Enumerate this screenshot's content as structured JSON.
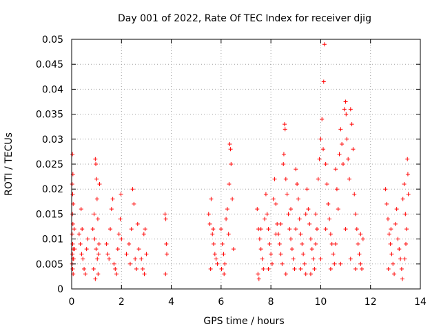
{
  "chart_data": {
    "type": "scatter",
    "title": "Day 001 of 2022, Rate Of TEC Index for receiver djig",
    "xlabel": "GPS time / hours",
    "ylabel": "ROTI / TECUs",
    "xlim": [
      0,
      14
    ],
    "ylim": [
      0,
      0.05
    ],
    "grid": true,
    "marker": "+",
    "color": "#ff0000",
    "x_ticks": [
      0,
      2,
      4,
      6,
      8,
      10,
      12,
      14
    ],
    "x_tick_labels": [
      "0",
      "2",
      "4",
      "6",
      "8",
      "10",
      "12",
      "14"
    ],
    "y_ticks": [
      0,
      0.005,
      0.01,
      0.015,
      0.02,
      0.025,
      0.03,
      0.035,
      0.04,
      0.045,
      0.05
    ],
    "y_tick_labels": [
      "0",
      "0.005",
      "0.01",
      "0.015",
      "0.02",
      "0.025",
      "0.03",
      "0.035",
      "0.04",
      "0.045",
      "0.05"
    ],
    "series": [
      {
        "name": "ROTI",
        "points": [
          [
            0.03,
            0.027
          ],
          [
            0.05,
            0.023
          ],
          [
            0.02,
            0.021
          ],
          [
            0.04,
            0.019
          ],
          [
            0.06,
            0.017
          ],
          [
            0.03,
            0.015
          ],
          [
            0.05,
            0.013
          ],
          [
            0.02,
            0.011
          ],
          [
            0.04,
            0.009
          ],
          [
            0.06,
            0.008
          ],
          [
            0.03,
            0.007
          ],
          [
            0.05,
            0.006
          ],
          [
            0.02,
            0.005
          ],
          [
            0.04,
            0.004
          ],
          [
            0.06,
            0.003
          ],
          [
            0.1,
            0.012
          ],
          [
            0.12,
            0.008
          ],
          [
            0.08,
            0.006
          ],
          [
            0.3,
            0.011
          ],
          [
            0.35,
            0.009
          ],
          [
            0.4,
            0.007
          ],
          [
            0.45,
            0.006
          ],
          [
            0.5,
            0.004
          ],
          [
            0.55,
            0.003
          ],
          [
            0.38,
            0.016
          ],
          [
            0.42,
            0.012
          ],
          [
            0.6,
            0.008
          ],
          [
            0.65,
            0.01
          ],
          [
            0.85,
            0.012
          ],
          [
            0.9,
            0.015
          ],
          [
            0.95,
            0.026
          ],
          [
            0.97,
            0.025
          ],
          [
            1.0,
            0.022
          ],
          [
            1.02,
            0.018
          ],
          [
            1.05,
            0.014
          ],
          [
            0.92,
            0.01
          ],
          [
            0.98,
            0.008
          ],
          [
            1.03,
            0.006
          ],
          [
            0.88,
            0.004
          ],
          [
            1.06,
            0.003
          ],
          [
            0.95,
            0.002
          ],
          [
            1.1,
            0.009
          ],
          [
            1.08,
            0.007
          ],
          [
            1.12,
            0.021
          ],
          [
            1.4,
            0.009
          ],
          [
            1.45,
            0.007
          ],
          [
            1.5,
            0.006
          ],
          [
            1.55,
            0.012
          ],
          [
            1.6,
            0.016
          ],
          [
            1.65,
            0.018
          ],
          [
            1.7,
            0.005
          ],
          [
            1.75,
            0.004
          ],
          [
            1.8,
            0.003
          ],
          [
            1.85,
            0.008
          ],
          [
            1.9,
            0.011
          ],
          [
            1.95,
            0.014
          ],
          [
            1.98,
            0.019
          ],
          [
            2.0,
            0.01
          ],
          [
            2.2,
            0.007
          ],
          [
            2.3,
            0.009
          ],
          [
            2.35,
            0.005
          ],
          [
            2.4,
            0.012
          ],
          [
            2.45,
            0.02
          ],
          [
            2.5,
            0.017
          ],
          [
            2.55,
            0.006
          ],
          [
            2.6,
            0.004
          ],
          [
            2.65,
            0.013
          ],
          [
            2.7,
            0.008
          ],
          [
            2.8,
            0.006
          ],
          [
            2.85,
            0.004
          ],
          [
            2.9,
            0.011
          ],
          [
            2.95,
            0.012
          ],
          [
            3.0,
            0.007
          ],
          [
            2.92,
            0.003
          ],
          [
            3.75,
            0.015
          ],
          [
            3.78,
            0.014
          ],
          [
            3.8,
            0.009
          ],
          [
            3.82,
            0.007
          ],
          [
            3.77,
            0.003
          ],
          [
            5.5,
            0.015
          ],
          [
            5.55,
            0.013
          ],
          [
            5.6,
            0.018
          ],
          [
            5.65,
            0.011
          ],
          [
            5.7,
            0.009
          ],
          [
            5.75,
            0.007
          ],
          [
            5.8,
            0.006
          ],
          [
            5.85,
            0.005
          ],
          [
            5.58,
            0.004
          ],
          [
            5.68,
            0.012
          ],
          [
            6.0,
            0.012
          ],
          [
            6.05,
            0.009
          ],
          [
            6.1,
            0.007
          ],
          [
            6.15,
            0.005
          ],
          [
            6.2,
            0.014
          ],
          [
            6.25,
            0.016
          ],
          [
            6.3,
            0.011
          ],
          [
            6.35,
            0.029
          ],
          [
            6.38,
            0.028
          ],
          [
            6.4,
            0.025
          ],
          [
            6.32,
            0.021
          ],
          [
            6.45,
            0.018
          ],
          [
            6.5,
            0.008
          ],
          [
            6.12,
            0.003
          ],
          [
            6.02,
            0.004
          ],
          [
            7.45,
            0.016
          ],
          [
            7.5,
            0.012
          ],
          [
            7.55,
            0.01
          ],
          [
            7.6,
            0.008
          ],
          [
            7.65,
            0.006
          ],
          [
            7.7,
            0.004
          ],
          [
            7.48,
            0.003
          ],
          [
            7.52,
            0.002
          ],
          [
            7.75,
            0.014
          ],
          [
            7.8,
            0.019
          ],
          [
            7.85,
            0.015
          ],
          [
            7.9,
            0.012
          ],
          [
            7.95,
            0.009
          ],
          [
            8.0,
            0.007
          ],
          [
            8.05,
            0.005
          ],
          [
            8.1,
            0.018
          ],
          [
            8.15,
            0.022
          ],
          [
            8.2,
            0.017
          ],
          [
            8.25,
            0.013
          ],
          [
            8.3,
            0.011
          ],
          [
            8.35,
            0.009
          ],
          [
            8.4,
            0.007
          ],
          [
            8.45,
            0.005
          ],
          [
            8.5,
            0.025
          ],
          [
            8.52,
            0.027
          ],
          [
            8.55,
            0.033
          ],
          [
            8.57,
            0.032
          ],
          [
            8.6,
            0.022
          ],
          [
            8.65,
            0.019
          ],
          [
            8.7,
            0.015
          ],
          [
            8.75,
            0.012
          ],
          [
            8.8,
            0.01
          ],
          [
            8.85,
            0.008
          ],
          [
            8.9,
            0.006
          ],
          [
            8.95,
            0.004
          ],
          [
            9.0,
            0.024
          ],
          [
            9.05,
            0.021
          ],
          [
            9.1,
            0.018
          ],
          [
            9.15,
            0.014
          ],
          [
            9.2,
            0.011
          ],
          [
            9.25,
            0.009
          ],
          [
            9.3,
            0.007
          ],
          [
            9.35,
            0.005
          ],
          [
            9.4,
            0.003
          ],
          [
            9.45,
            0.02
          ],
          [
            9.5,
            0.016
          ],
          [
            9.55,
            0.013
          ],
          [
            9.6,
            0.01
          ],
          [
            9.65,
            0.008
          ],
          [
            9.7,
            0.006
          ],
          [
            9.75,
            0.004
          ],
          [
            9.8,
            0.015
          ],
          [
            9.85,
            0.012
          ],
          [
            9.9,
            0.022
          ],
          [
            9.95,
            0.026
          ],
          [
            10.0,
            0.03
          ],
          [
            10.05,
            0.034
          ],
          [
            10.1,
            0.028
          ],
          [
            10.15,
            0.049
          ],
          [
            10.12,
            0.0415
          ],
          [
            10.2,
            0.025
          ],
          [
            10.25,
            0.021
          ],
          [
            10.3,
            0.017
          ],
          [
            10.35,
            0.014
          ],
          [
            10.4,
            0.011
          ],
          [
            10.45,
            0.009
          ],
          [
            10.5,
            0.007
          ],
          [
            10.55,
            0.005
          ],
          [
            10.6,
            0.024
          ],
          [
            10.65,
            0.02
          ],
          [
            10.7,
            0.016
          ],
          [
            10.75,
            0.027
          ],
          [
            10.8,
            0.032
          ],
          [
            10.85,
            0.029
          ],
          [
            10.9,
            0.025
          ],
          [
            10.95,
            0.036
          ],
          [
            11.0,
            0.0375
          ],
          [
            11.02,
            0.035
          ],
          [
            11.05,
            0.03
          ],
          [
            11.1,
            0.026
          ],
          [
            11.15,
            0.022
          ],
          [
            11.2,
            0.036
          ],
          [
            11.25,
            0.033
          ],
          [
            11.3,
            0.028
          ],
          [
            11.35,
            0.019
          ],
          [
            11.4,
            0.015
          ],
          [
            11.45,
            0.012
          ],
          [
            11.5,
            0.009
          ],
          [
            11.55,
            0.007
          ],
          [
            11.6,
            0.005
          ],
          [
            11.65,
            0.004
          ],
          [
            11.7,
            0.01
          ],
          [
            7.6,
            0.012
          ],
          [
            7.9,
            0.004
          ],
          [
            8.2,
            0.011
          ],
          [
            8.4,
            0.013
          ],
          [
            8.6,
            0.003
          ],
          [
            8.8,
            0.016
          ],
          [
            9.0,
            0.012
          ],
          [
            9.2,
            0.004
          ],
          [
            9.4,
            0.015
          ],
          [
            9.6,
            0.003
          ],
          [
            9.8,
            0.009
          ],
          [
            10.0,
            0.006
          ],
          [
            10.2,
            0.012
          ],
          [
            10.4,
            0.004
          ],
          [
            10.6,
            0.009
          ],
          [
            10.8,
            0.005
          ],
          [
            11.0,
            0.012
          ],
          [
            11.2,
            0.006
          ],
          [
            11.4,
            0.004
          ],
          [
            11.6,
            0.011
          ],
          [
            12.6,
            0.02
          ],
          [
            12.65,
            0.017
          ],
          [
            12.7,
            0.014
          ],
          [
            12.75,
            0.011
          ],
          [
            12.8,
            0.009
          ],
          [
            12.85,
            0.007
          ],
          [
            12.9,
            0.005
          ],
          [
            12.95,
            0.003
          ],
          [
            13.0,
            0.013
          ],
          [
            13.05,
            0.016
          ],
          [
            13.1,
            0.01
          ],
          [
            13.15,
            0.008
          ],
          [
            13.2,
            0.006
          ],
          [
            13.25,
            0.004
          ],
          [
            13.3,
            0.018
          ],
          [
            13.35,
            0.021
          ],
          [
            13.4,
            0.015
          ],
          [
            13.45,
            0.012
          ],
          [
            13.48,
            0.026
          ],
          [
            13.5,
            0.023
          ],
          [
            13.52,
            0.019
          ],
          [
            13.42,
            0.009
          ],
          [
            13.38,
            0.006
          ],
          [
            13.28,
            0.002
          ],
          [
            12.72,
            0.004
          ],
          [
            12.82,
            0.012
          ]
        ]
      }
    ]
  }
}
